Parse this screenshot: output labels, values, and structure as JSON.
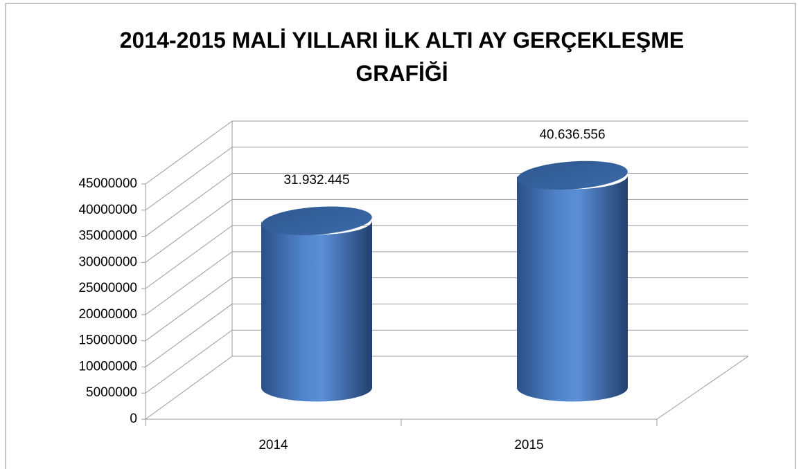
{
  "chart_data": {
    "type": "bar3d",
    "title": "2014-2015 MALİ YILLARI İLK ALTI AY GERÇEKLEŞME GRAFİĞİ",
    "categories": [
      "2014",
      "2015"
    ],
    "values": [
      31932445,
      40636556
    ],
    "value_labels": [
      "31.932.445",
      "40.636.556"
    ],
    "color": "#4f81bd",
    "ylim": [
      0,
      45000000
    ],
    "yticks": [
      0,
      5000000,
      10000000,
      15000000,
      20000000,
      25000000,
      30000000,
      35000000,
      40000000,
      45000000
    ],
    "grid": true
  }
}
